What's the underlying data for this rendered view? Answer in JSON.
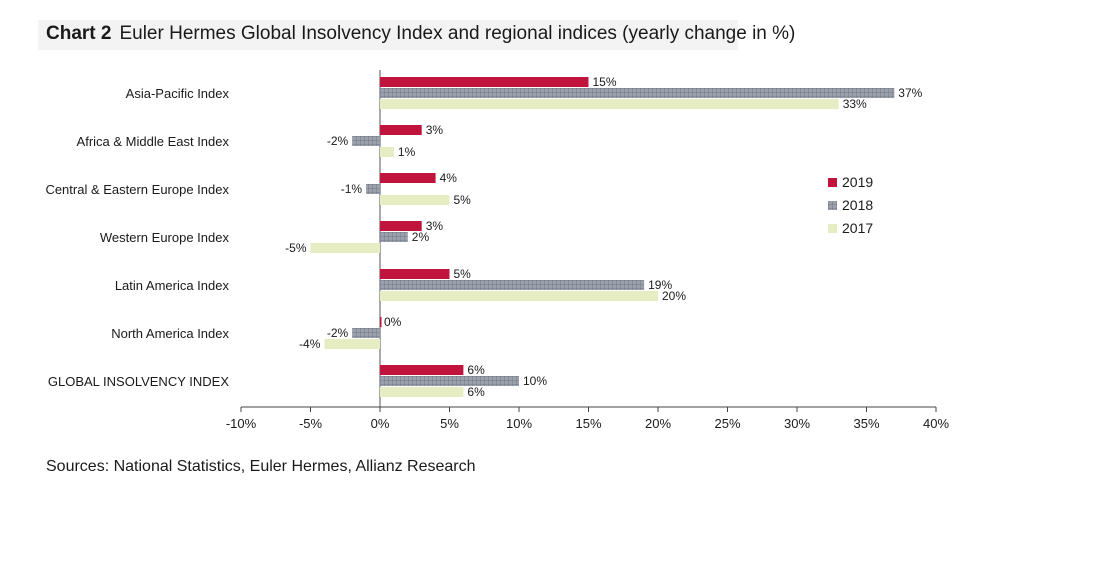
{
  "header": {
    "title_lead": "Chart 2",
    "title_rest": "Euler Hermes Global Insolvency Index and regional indices (yearly change in %)"
  },
  "footer": {
    "source": "Sources: National Statistics, Euler Hermes, Allianz Research"
  },
  "chart_data": {
    "type": "bar",
    "orientation": "horizontal",
    "categories": [
      "Asia-Pacific Index",
      "Africa & Middle East Index",
      "Central & Eastern Europe Index",
      "Western Europe Index",
      "Latin America Index",
      "North America Index",
      "GLOBAL INSOLVENCY INDEX"
    ],
    "series": [
      {
        "name": "2019",
        "color": "#c0143c",
        "pattern": "solid",
        "values": [
          15,
          3,
          4,
          3,
          5,
          0,
          6
        ],
        "labels": [
          "15%",
          "3%",
          "4%",
          "3%",
          "5%",
          "0%",
          "6%"
        ]
      },
      {
        "name": "2018",
        "color": "#8f96a3",
        "pattern": "grid",
        "values": [
          37,
          -2,
          -1,
          2,
          19,
          -2,
          10
        ],
        "labels": [
          "37%",
          "-2%",
          "-1%",
          "2%",
          "19%",
          "-2%",
          "10%"
        ]
      },
      {
        "name": "2017",
        "color": "#e6edc2",
        "pattern": "solid",
        "values": [
          33,
          1,
          5,
          -5,
          20,
          -4,
          6
        ],
        "labels": [
          "33%",
          "1%",
          "5%",
          "-5%",
          "20%",
          "-4%",
          "6%"
        ]
      }
    ],
    "xlim": [
      -10,
      40
    ],
    "xticks": [
      "-10%",
      "-5%",
      "0%",
      "5%",
      "10%",
      "15%",
      "20%",
      "25%",
      "30%",
      "35%",
      "40%"
    ],
    "legend_position": "right",
    "grid": false
  }
}
